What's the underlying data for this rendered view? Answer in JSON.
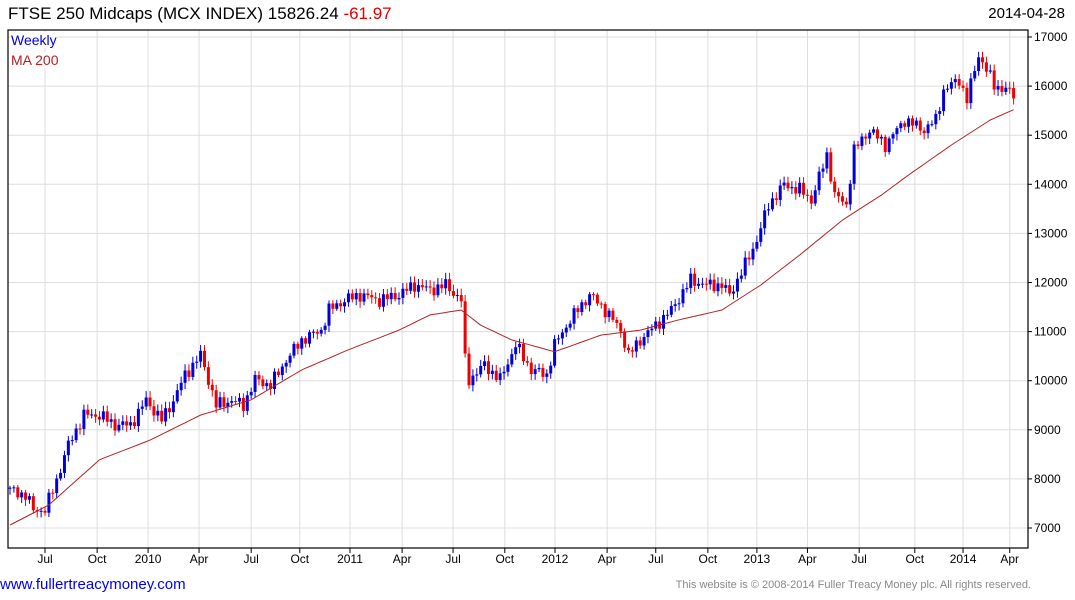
{
  "header": {
    "title": "FTSE 250 Midcaps (MCX INDEX)",
    "last": "15826.24",
    "change": "-61.97",
    "date": "2014-04-28"
  },
  "legend": {
    "period": "Weekly",
    "ma": "MA 200"
  },
  "footer": {
    "link": "www.fullertreacymoney.com",
    "copyright": "This website is © 2008-2014 Fuller Treacy Money plc. All rights reserved."
  },
  "colors": {
    "up": "#0000dd",
    "down": "#ee0000",
    "ma": "#b22222",
    "grid": "#dddddd"
  },
  "chart_data": {
    "type": "candlestick",
    "title": "FTSE 250 Midcaps (MCX INDEX) Weekly",
    "ylim": [
      6800,
      17200
    ],
    "xlim": [
      -0.5,
      259
    ],
    "yticks": [
      7000,
      8000,
      9000,
      10000,
      11000,
      12000,
      13000,
      14000,
      15000,
      16000,
      17000
    ],
    "xticks": [
      {
        "w": 9,
        "label": "Jul"
      },
      {
        "w": 22.4,
        "label": "Oct"
      },
      {
        "w": 35.5,
        "label": "2010"
      },
      {
        "w": 48.6,
        "label": "Apr"
      },
      {
        "w": 62,
        "label": "Jul"
      },
      {
        "w": 74.5,
        "label": "Oct"
      },
      {
        "w": 87.4,
        "label": "2011"
      },
      {
        "w": 100.8,
        "label": "Apr"
      },
      {
        "w": 113.9,
        "label": "Jul"
      },
      {
        "w": 127.2,
        "label": "Oct"
      },
      {
        "w": 140.1,
        "label": "2012"
      },
      {
        "w": 153.5,
        "label": "Apr"
      },
      {
        "w": 166,
        "label": "Jul"
      },
      {
        "w": 179.4,
        "label": "Oct"
      },
      {
        "w": 192,
        "label": "2013"
      },
      {
        "w": 205,
        "label": "Apr"
      },
      {
        "w": 218.3,
        "label": "Jul"
      },
      {
        "w": 232.6,
        "label": "Oct"
      },
      {
        "w": 245,
        "label": "2014"
      },
      {
        "w": 257,
        "label": "Apr"
      }
    ],
    "close_keypoints": [
      [
        0,
        7770
      ],
      [
        4,
        7670
      ],
      [
        6,
        7370
      ],
      [
        9,
        7370
      ],
      [
        12,
        7980
      ],
      [
        15,
        8690
      ],
      [
        19,
        9300
      ],
      [
        23,
        9300
      ],
      [
        27,
        9100
      ],
      [
        31,
        9100
      ],
      [
        35,
        9600
      ],
      [
        39,
        9200
      ],
      [
        42,
        9600
      ],
      [
        45,
        10120
      ],
      [
        49,
        10520
      ],
      [
        51,
        10020
      ],
      [
        53,
        9500
      ],
      [
        57,
        9600
      ],
      [
        60,
        9500
      ],
      [
        63,
        10020
      ],
      [
        67,
        9910
      ],
      [
        71,
        10420
      ],
      [
        75,
        10830
      ],
      [
        80,
        11030
      ],
      [
        82,
        11440
      ],
      [
        86,
        11640
      ],
      [
        90,
        11750
      ],
      [
        95,
        11640
      ],
      [
        100,
        11750
      ],
      [
        104,
        11950
      ],
      [
        108,
        11850
      ],
      [
        112,
        11950
      ],
      [
        116,
        11640
      ],
      [
        117,
        10420
      ],
      [
        118,
        10020
      ],
      [
        122,
        10320
      ],
      [
        126,
        10020
      ],
      [
        130,
        10730
      ],
      [
        134,
        10220
      ],
      [
        138,
        10120
      ],
      [
        140,
        10730
      ],
      [
        144,
        11240
      ],
      [
        149,
        11750
      ],
      [
        153,
        11440
      ],
      [
        157,
        11030
      ],
      [
        159,
        10520
      ],
      [
        162,
        10830
      ],
      [
        166,
        11130
      ],
      [
        170,
        11440
      ],
      [
        175,
        12050
      ],
      [
        179,
        11950
      ],
      [
        183,
        11950
      ],
      [
        185,
        11750
      ],
      [
        189,
        12360
      ],
      [
        192,
        12870
      ],
      [
        195,
        13580
      ],
      [
        199,
        13990
      ],
      [
        203,
        13890
      ],
      [
        206,
        13680
      ],
      [
        210,
        14600
      ],
      [
        212,
        13780
      ],
      [
        215,
        13580
      ],
      [
        217,
        14700
      ],
      [
        221,
        15110
      ],
      [
        225,
        14800
      ],
      [
        230,
        15310
      ],
      [
        235,
        15110
      ],
      [
        238,
        15310
      ],
      [
        240,
        15920
      ],
      [
        244,
        16130
      ],
      [
        246,
        15720
      ],
      [
        249,
        16640
      ],
      [
        253,
        16020
      ],
      [
        256,
        15920
      ],
      [
        258,
        15830
      ]
    ],
    "ma200_keypoints": [
      [
        0,
        7060
      ],
      [
        10,
        7470
      ],
      [
        23,
        8390
      ],
      [
        36,
        8790
      ],
      [
        49,
        9300
      ],
      [
        62,
        9610
      ],
      [
        75,
        10220
      ],
      [
        87,
        10630
      ],
      [
        100,
        11030
      ],
      [
        108,
        11340
      ],
      [
        116,
        11440
      ],
      [
        121,
        11130
      ],
      [
        129,
        10830
      ],
      [
        140,
        10590
      ],
      [
        152,
        10930
      ],
      [
        162,
        11030
      ],
      [
        172,
        11240
      ],
      [
        183,
        11440
      ],
      [
        193,
        11950
      ],
      [
        203,
        12560
      ],
      [
        214,
        13270
      ],
      [
        224,
        13780
      ],
      [
        231,
        14190
      ],
      [
        242,
        14800
      ],
      [
        252,
        15310
      ],
      [
        258,
        15520
      ]
    ]
  }
}
